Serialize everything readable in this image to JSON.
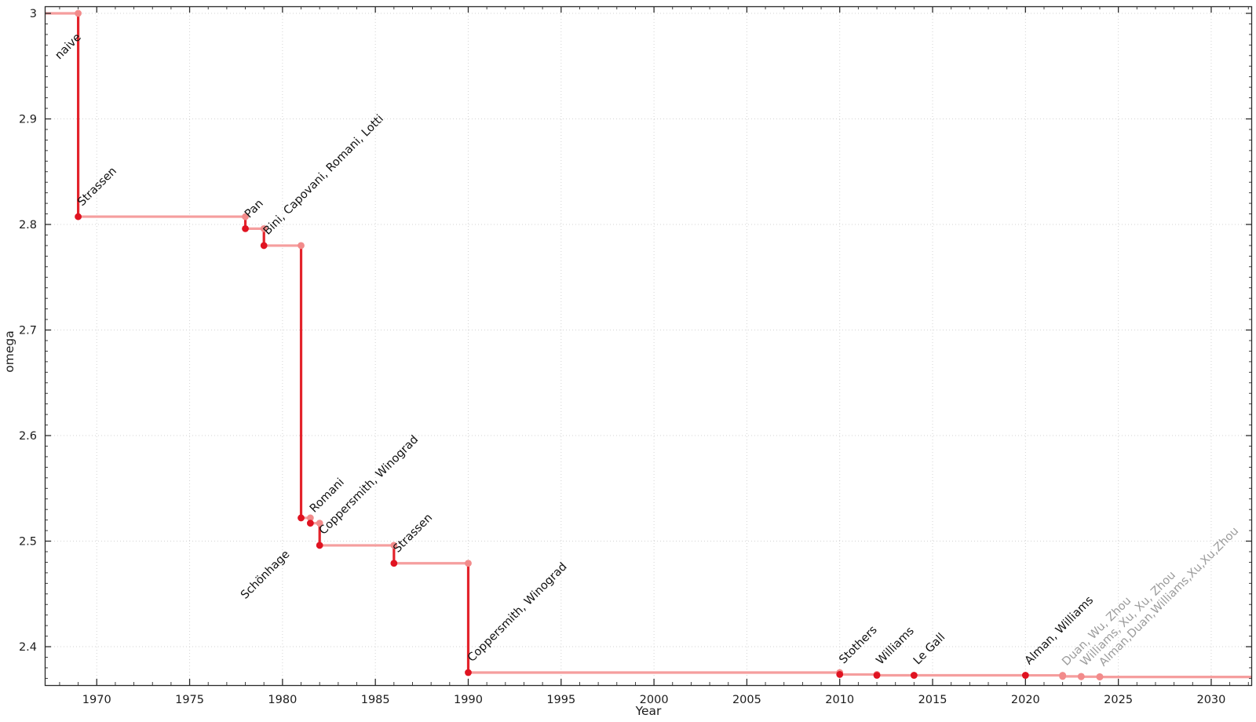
{
  "chart_data": {
    "type": "line",
    "style": "step-post",
    "title": "",
    "xlabel": "Year",
    "ylabel": "omega",
    "legend": "none",
    "grid": "dotted-major-both-axes",
    "xlim": [
      1967.2,
      2032.2
    ],
    "ylim": [
      2.3636,
      3.0067
    ],
    "x_tick_values": [
      1970,
      1975,
      1980,
      1985,
      1990,
      1995,
      2000,
      2005,
      2010,
      2015,
      2020,
      2025,
      2030
    ],
    "x_tick_labels": [
      "1970",
      "1975",
      "1980",
      "1985",
      "1990",
      "1995",
      "2000",
      "2005",
      "2010",
      "2015",
      "2020",
      "2025",
      "2030"
    ],
    "x_minor_step": 1,
    "y_tick_values": [
      2.4,
      2.5,
      2.6,
      2.7,
      2.8,
      2.9,
      3.0
    ],
    "y_tick_labels": [
      "2.4",
      "2.5",
      "2.6",
      "2.7",
      "2.8",
      "2.9",
      "3"
    ],
    "y_minor_step": 0.01,
    "initial": {
      "label": "naive",
      "omega": 3,
      "label_at": [
        1968.0,
        2.956
      ]
    },
    "events": [
      {
        "label": "Strassen",
        "year": 1969,
        "omega": 2.8074
      },
      {
        "label": "Pan",
        "year": 1978,
        "omega": 2.796
      },
      {
        "label": "Bini, Capovani, Romani, Lotti",
        "year": 1979,
        "omega": 2.78
      },
      {
        "label": "Schönhage",
        "year": 1981,
        "omega": 2.522,
        "label_at": [
          1978.0,
          2.4447
        ]
      },
      {
        "label": "Romani",
        "year": 1981.5,
        "omega": 2.517
      },
      {
        "label": "Coppersmith, Winograd",
        "year": 1982,
        "omega": 2.496
      },
      {
        "label": "Strassen",
        "year": 1986,
        "omega": 2.479
      },
      {
        "label": "Coppersmith, Winograd",
        "year": 1990,
        "omega": 2.3755
      },
      {
        "label": "Stothers",
        "year": 2010,
        "omega": 2.3737
      },
      {
        "label": "Williams",
        "year": 2012,
        "omega": 2.3729
      },
      {
        "label": "Le Gall",
        "year": 2014,
        "omega": 2.37287
      },
      {
        "label": "Alman, Williams",
        "year": 2020,
        "omega": 2.37286
      },
      {
        "label": "Duan, Wu, Zhou",
        "year": 2022,
        "omega": 2.37188,
        "pending": true
      },
      {
        "label": "Williams, Xu, Xu, Zhou",
        "year": 2023,
        "omega": 2.37156,
        "pending": true
      },
      {
        "label": "Alman,Duan,Williams,Xu,Xu,Zhou",
        "year": 2024,
        "omega": 2.37134,
        "pending": true
      }
    ],
    "colors": {
      "step_line": "#f59e9e",
      "drop_line": "#e3232b",
      "point": "#e01321",
      "corner_point": "#f28b8b",
      "pending_point": "#f28b8b",
      "label_text": "#111111",
      "pending_label_text": "#9b9b9b",
      "axis": "#2a2a2a",
      "tick_text": "#1c1c1c",
      "grid": "#c9c9c9"
    }
  }
}
